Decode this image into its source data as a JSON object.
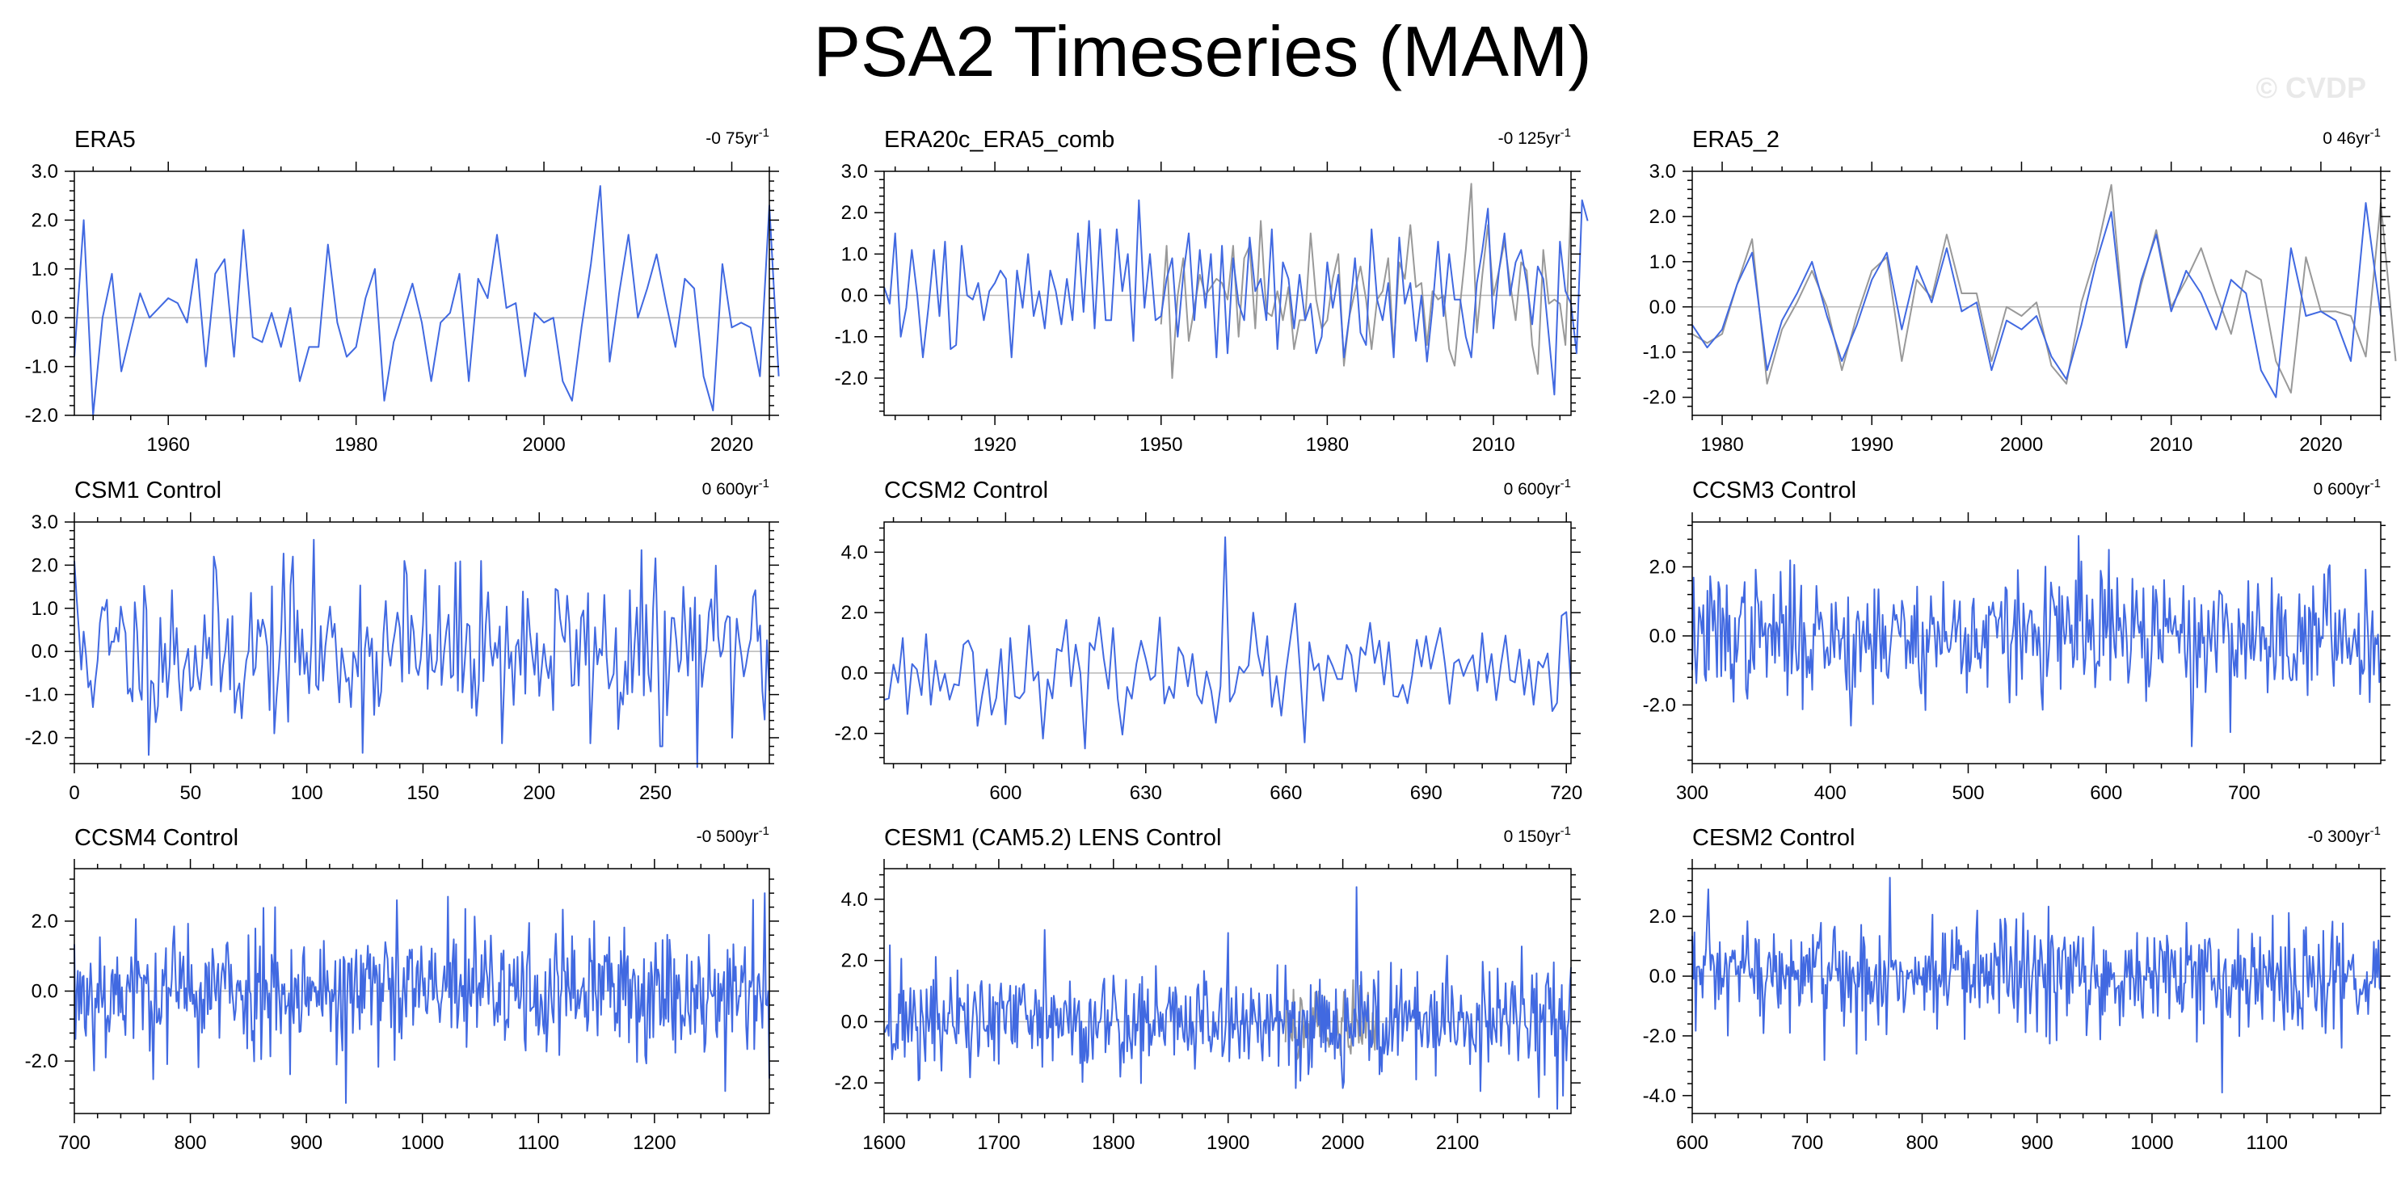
{
  "title": "PSA2 Timeseries (MAM)",
  "watermark": "© CVDP",
  "colors": {
    "main": "#4169e1",
    "secondary": "#999999",
    "axis": "#000000",
    "zero": "#b8b8b8"
  },
  "chart_data": [
    {
      "type": "line",
      "title": "ERA5",
      "trend": "-0 75yr",
      "trend_sup": "-1",
      "xlim": [
        1950,
        2024
      ],
      "ylim": [
        -2.0,
        3.0
      ],
      "xticks": [
        1960,
        1980,
        2000,
        2020
      ],
      "xtick_labels": [
        "1960",
        "1980",
        "2000",
        "2020"
      ],
      "yticks": [
        -2,
        -1,
        0,
        1,
        2,
        3
      ],
      "ytick_labels": [
        "-2.0",
        "-1.0",
        "0.0",
        "1.0",
        "2.0",
        "3.0"
      ],
      "x_start": 1950,
      "x_step": 1,
      "series": [
        {
          "values": [
            -0.8,
            2.0,
            -2.0,
            0.0,
            0.9,
            -1.1,
            -0.3,
            0.5,
            0.0,
            0.2,
            0.4,
            0.3,
            -0.1,
            1.2,
            -1.0,
            0.9,
            1.2,
            -0.8,
            1.8,
            -0.4,
            -0.5,
            0.1,
            -0.6,
            0.2,
            -1.3,
            -0.6,
            -0.6,
            1.5,
            -0.1,
            -0.8,
            -0.6,
            0.4,
            1.0,
            -1.7,
            -0.5,
            0.1,
            0.7,
            -0.1,
            -1.3,
            -0.1,
            0.1,
            0.9,
            -1.3,
            0.8,
            0.4,
            1.7,
            0.2,
            0.3,
            -1.2,
            0.1,
            -0.1,
            0.0,
            -1.3,
            -1.7,
            -0.2,
            1.1,
            2.7,
            -0.9,
            0.5,
            1.7,
            0.0,
            0.6,
            1.3,
            0.3,
            -0.6,
            0.8,
            0.6,
            -1.2,
            -1.9,
            1.1,
            -0.2,
            -0.1,
            -0.2,
            -1.2,
            2.3,
            -1.2
          ]
        }
      ]
    },
    {
      "type": "line",
      "title": "ERA20c_ERA5_comb",
      "trend": "-0 125yr",
      "trend_sup": "-1",
      "xlim": [
        1900,
        2024
      ],
      "ylim": [
        -2.9,
        3.0
      ],
      "xticks": [
        1920,
        1950,
        1980,
        2010
      ],
      "xtick_labels": [
        "1920",
        "1950",
        "1980",
        "2010"
      ],
      "yticks": [
        -2,
        -1,
        0,
        1,
        2,
        3
      ],
      "ytick_labels": [
        "-2.0",
        "-1.0",
        "0.0",
        "1.0",
        "2.0",
        "3.0"
      ],
      "x_start": 1900,
      "x_step": 1,
      "series": [
        {
          "values": [
            0.2,
            -0.2,
            1.5,
            -1.0,
            -0.3,
            1.1,
            0.0,
            -1.5,
            -0.3,
            1.1,
            -0.5,
            1.3,
            -1.3,
            -1.2,
            1.2,
            0.0,
            -0.1,
            0.3,
            -0.6,
            0.1,
            0.3,
            0.6,
            0.4,
            -1.5,
            0.6,
            -0.3,
            1.0,
            -0.5,
            0.1,
            -0.8,
            0.6,
            0.1,
            -0.7,
            0.4,
            -0.6,
            1.5,
            -0.4,
            1.8,
            -0.8,
            1.6,
            -0.6,
            -0.6,
            1.6,
            0.1,
            1.0,
            -1.1,
            2.3,
            -0.3,
            1.0,
            -0.6,
            -0.5,
            0.4,
            0.9,
            -1.0,
            0.5,
            1.5,
            -0.6,
            1.1,
            -0.3,
            1.0,
            -1.5,
            1.2,
            -1.4,
            0.9,
            -0.2,
            -0.6,
            1.4,
            0.1,
            0.4,
            -0.6,
            1.6,
            -1.3,
            0.8,
            0.4,
            -0.8,
            0.5,
            -0.6,
            -0.2,
            -1.4,
            -1.0,
            0.8,
            -0.3,
            0.5,
            -1.5,
            -0.5,
            0.9,
            -0.9,
            -1.2,
            1.6,
            -0.1,
            -0.6,
            0.3,
            -1.5,
            1.4,
            -0.2,
            0.3,
            -1.1,
            0.0,
            -1.6,
            -0.3,
            1.3,
            -0.5,
            1.0,
            -0.1,
            -0.1,
            -1.0,
            -1.5,
            0.3,
            1.1,
            2.1,
            -0.8,
            0.6,
            1.5,
            0.0,
            0.8,
            1.1,
            0.3,
            -0.7,
            0.7,
            0.4,
            -1.0,
            -2.4,
            1.3,
            0.1,
            -0.2,
            -1.4,
            2.3,
            1.8
          ]
        },
        {
          "start": 1950,
          "values": [
            -0.7,
            1.2,
            -2.0,
            0.0,
            0.9,
            -1.1,
            -0.3,
            0.5,
            0.0,
            0.2,
            0.4,
            0.3,
            -0.1,
            1.2,
            -1.0,
            0.9,
            1.2,
            -0.8,
            1.8,
            -0.4,
            -0.5,
            0.1,
            -0.6,
            0.2,
            -1.3,
            -0.6,
            -0.6,
            1.5,
            -0.1,
            -0.8,
            -0.6,
            0.4,
            1.0,
            -1.7,
            -0.5,
            0.1,
            0.7,
            -0.1,
            -1.3,
            -0.1,
            0.1,
            0.9,
            -1.3,
            0.8,
            0.4,
            1.7,
            0.2,
            0.3,
            -1.2,
            0.1,
            -0.1,
            0.0,
            -1.3,
            -1.7,
            -0.2,
            1.1,
            2.7,
            -0.9,
            0.5,
            1.7,
            0.0,
            0.6,
            1.3,
            0.3,
            -0.6,
            0.8,
            0.6,
            -1.2,
            -1.9,
            1.1,
            -0.2,
            -0.1,
            -0.2,
            -1.2,
            2.3
          ]
        }
      ]
    },
    {
      "type": "line",
      "title": "ERA5_2",
      "trend": "0 46yr",
      "trend_sup": "-1",
      "xlim": [
        1978,
        2024
      ],
      "ylim": [
        -2.4,
        3.0
      ],
      "xticks": [
        1980,
        1990,
        2000,
        2010,
        2020
      ],
      "xtick_labels": [
        "1980",
        "1990",
        "2000",
        "2010",
        "2020"
      ],
      "yticks": [
        -2,
        -1,
        0,
        1,
        2,
        3
      ],
      "ytick_labels": [
        "-2.0",
        "-1.0",
        "0.0",
        "1.0",
        "2.0",
        "3.0"
      ],
      "x_start": 1978,
      "x_step": 1,
      "series": [
        {
          "values": [
            -0.4,
            -0.9,
            -0.5,
            0.5,
            1.2,
            -1.4,
            -0.3,
            0.3,
            1.0,
            -0.2,
            -1.2,
            -0.4,
            0.6,
            1.2,
            -0.5,
            0.9,
            0.1,
            1.3,
            -0.1,
            0.1,
            -1.4,
            -0.3,
            -0.5,
            -0.2,
            -1.1,
            -1.6,
            -0.4,
            1.0,
            2.1,
            -0.9,
            0.6,
            1.6,
            -0.1,
            0.8,
            0.3,
            -0.5,
            0.6,
            0.3,
            -1.4,
            -2.0,
            1.3,
            -0.2,
            -0.1,
            -0.3,
            -1.2,
            2.3,
            -0.2
          ]
        },
        {
          "values": [
            -0.6,
            -0.8,
            -0.6,
            0.5,
            1.5,
            -1.7,
            -0.5,
            0.1,
            0.8,
            0.0,
            -1.4,
            -0.2,
            0.8,
            1.1,
            -1.2,
            0.6,
            0.2,
            1.6,
            0.3,
            0.3,
            -1.2,
            0.0,
            -0.2,
            0.1,
            -1.3,
            -1.7,
            0.1,
            1.2,
            2.7,
            -0.9,
            0.5,
            1.7,
            0.0,
            0.6,
            1.3,
            0.3,
            -0.6,
            0.8,
            0.6,
            -1.2,
            -1.9,
            1.1,
            -0.1,
            -0.1,
            -0.2,
            -1.1,
            2.3,
            -1.2
          ]
        }
      ]
    },
    {
      "type": "line",
      "title": "CSM1 Control",
      "trend": "0 600yr",
      "trend_sup": "-1",
      "xlim": [
        0,
        299
      ],
      "ylim": [
        -2.6,
        3.0
      ],
      "xticks": [
        0,
        50,
        100,
        150,
        200,
        250
      ],
      "xtick_labels": [
        "0",
        "50",
        "100",
        "150",
        "200",
        "250"
      ],
      "yticks": [
        -2,
        -1,
        0,
        1,
        2,
        3
      ],
      "ytick_labels": [
        "-2.0",
        "-1.0",
        "0.0",
        "1.0",
        "2.0",
        "3.0"
      ],
      "x_start": 0,
      "x_step": 1,
      "synth": {
        "n": 300,
        "seed": 11,
        "sd": 0.95,
        "peaks": [
          [
            0,
            2.1
          ],
          [
            94,
            2.2
          ],
          [
            142,
            2.1
          ],
          [
            175,
            2.1
          ],
          [
            253,
            -2.2
          ],
          [
            234,
            -1.8
          ]
        ]
      }
    },
    {
      "type": "line",
      "title": "CCSM2 Control",
      "trend": "0 600yr",
      "trend_sup": "-1",
      "xlim": [
        574,
        721
      ],
      "ylim": [
        -3.0,
        5.0
      ],
      "xticks": [
        600,
        630,
        660,
        690,
        720
      ],
      "xtick_labels": [
        "600",
        "630",
        "660",
        "690",
        "720"
      ],
      "yticks": [
        -2,
        0,
        2,
        4
      ],
      "ytick_labels": [
        "-2.0",
        "0.0",
        "2.0",
        "4.0"
      ],
      "x_start": 574,
      "x_step": 1,
      "synth": {
        "n": 148,
        "seed": 23,
        "sd": 0.8,
        "peaks": [
          [
            647,
            4.5
          ],
          [
            617,
            -2.5
          ],
          [
            664,
            -2.3
          ],
          [
            662,
            2.3
          ],
          [
            719,
            1.9
          ]
        ]
      }
    },
    {
      "type": "line",
      "title": "CCSM3 Control",
      "trend": "0 600yr",
      "trend_sup": "-1",
      "xlim": [
        300,
        799
      ],
      "ylim": [
        -3.7,
        3.3
      ],
      "xticks": [
        300,
        400,
        500,
        600,
        700
      ],
      "xtick_labels": [
        "300",
        "400",
        "500",
        "600",
        "700"
      ],
      "yticks": [
        -2,
        0,
        2
      ],
      "ytick_labels": [
        "-2.0",
        "0.0",
        "2.0"
      ],
      "x_start": 300,
      "x_step": 1,
      "synth": {
        "n": 500,
        "seed": 37,
        "sd": 0.9,
        "peaks": [
          [
            580,
            2.9
          ],
          [
            662,
            -3.2
          ],
          [
            602,
            2.5
          ],
          [
            415,
            -2.6
          ]
        ]
      }
    },
    {
      "type": "line",
      "title": "CCSM4 Control",
      "trend": "-0 500yr",
      "trend_sup": "-1",
      "xlim": [
        700,
        1299
      ],
      "ylim": [
        -3.5,
        3.5
      ],
      "xticks": [
        700,
        800,
        900,
        1000,
        1100,
        1200
      ],
      "xtick_labels": [
        "700",
        "800",
        "900",
        "1000",
        "1100",
        "1200"
      ],
      "yticks": [
        -2,
        0,
        2
      ],
      "ytick_labels": [
        "-2.0",
        "0.0",
        "2.0"
      ],
      "x_start": 700,
      "x_step": 1,
      "synth": {
        "n": 600,
        "seed": 53,
        "sd": 0.95,
        "peaks": [
          [
            934,
            -3.2
          ],
          [
            1295,
            2.8
          ],
          [
            1022,
            2.7
          ],
          [
            873,
            2.4
          ]
        ]
      }
    },
    {
      "type": "line",
      "title": "CESM1 (CAM5.2) LENS Control",
      "trend": "0 150yr",
      "trend_sup": "-1",
      "xlim": [
        1600,
        2199
      ],
      "ylim": [
        -3.0,
        5.0
      ],
      "xticks": [
        1600,
        1700,
        1800,
        1900,
        2000,
        2100
      ],
      "xtick_labels": [
        "1600",
        "1700",
        "1800",
        "1900",
        "2000",
        "2100"
      ],
      "yticks": [
        -2,
        0,
        2,
        4
      ],
      "ytick_labels": [
        "-2.0",
        "0.0",
        "2.0",
        "4.0"
      ],
      "x_start": 1600,
      "x_step": 1,
      "synth": {
        "n": 600,
        "seed": 71,
        "sd": 0.9,
        "peaks": [
          [
            2012,
            4.4
          ],
          [
            1740,
            3.0
          ],
          [
            1900,
            2.9
          ],
          [
            1605,
            2.5
          ]
        ]
      },
      "synth2": {
        "start": 1950,
        "n": 80,
        "seed": 89,
        "sd": 0.7
      }
    },
    {
      "type": "line",
      "title": "CESM2 Control",
      "trend": "-0 300yr",
      "trend_sup": "-1",
      "xlim": [
        600,
        1199
      ],
      "ylim": [
        -4.6,
        3.6
      ],
      "xticks": [
        600,
        700,
        800,
        900,
        1000,
        1100
      ],
      "xtick_labels": [
        "600",
        "700",
        "800",
        "900",
        "1000",
        "1100"
      ],
      "yticks": [
        -4,
        -2,
        0,
        2
      ],
      "ytick_labels": [
        "-4.0",
        "-2.0",
        "0.0",
        "2.0"
      ],
      "x_start": 600,
      "x_step": 1,
      "synth": {
        "n": 600,
        "seed": 97,
        "sd": 0.95,
        "peaks": [
          [
            1061,
            -3.9
          ],
          [
            772,
            3.3
          ],
          [
            743,
            -2.6
          ],
          [
            1165,
            -2.4
          ]
        ]
      }
    }
  ]
}
